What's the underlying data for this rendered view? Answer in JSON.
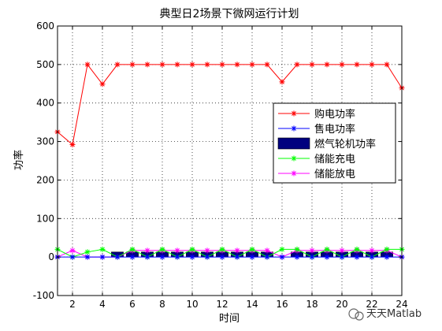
{
  "chart_data": {
    "type": "line",
    "title": "典型日2场景下微网运行计划",
    "xlabel": "时间",
    "ylabel": "功率",
    "xlim": [
      1,
      24
    ],
    "ylim": [
      -100,
      600
    ],
    "xticks": [
      2,
      4,
      6,
      8,
      10,
      12,
      14,
      16,
      18,
      20,
      22,
      24
    ],
    "yticks": [
      -100,
      0,
      100,
      200,
      300,
      400,
      500,
      600
    ],
    "grid": true,
    "legend_position": "right",
    "x": [
      1,
      2,
      3,
      4,
      5,
      6,
      7,
      8,
      9,
      10,
      11,
      12,
      13,
      14,
      15,
      16,
      17,
      18,
      19,
      20,
      21,
      22,
      23,
      24
    ],
    "series": [
      {
        "name": "购电功率",
        "kind": "line",
        "color": "#ff0000",
        "marker": "*",
        "values": [
          325,
          292,
          500,
          449,
          500,
          500,
          500,
          500,
          500,
          500,
          500,
          500,
          500,
          500,
          500,
          455,
          500,
          500,
          500,
          500,
          500,
          500,
          500,
          439
        ]
      },
      {
        "name": "售电功率",
        "kind": "line",
        "color": "#0000ff",
        "marker": "*",
        "values": [
          0,
          0,
          0,
          0,
          0,
          0,
          0,
          0,
          0,
          0,
          0,
          0,
          0,
          0,
          0,
          0,
          0,
          0,
          0,
          0,
          0,
          0,
          0,
          0
        ]
      },
      {
        "name": "燃气轮机功率",
        "kind": "bar",
        "color": "#00007f",
        "values": [
          0,
          0,
          0,
          0,
          13,
          13,
          13,
          13,
          13,
          13,
          13,
          13,
          13,
          13,
          13,
          0,
          13,
          13,
          13,
          13,
          13,
          13,
          13,
          0
        ]
      },
      {
        "name": "储能充电",
        "kind": "line",
        "color": "#00ff00",
        "marker": "*",
        "values": [
          20,
          0,
          13,
          20,
          0,
          20,
          0,
          20,
          0,
          20,
          0,
          20,
          0,
          20,
          0,
          20,
          20,
          0,
          20,
          0,
          20,
          0,
          20,
          20
        ]
      },
      {
        "name": "储能放电",
        "kind": "line",
        "color": "#ff00ff",
        "marker": "*",
        "values": [
          0,
          17,
          0,
          0,
          0,
          17,
          17,
          17,
          17,
          17,
          17,
          17,
          17,
          17,
          17,
          0,
          17,
          17,
          17,
          17,
          17,
          17,
          17,
          0
        ]
      }
    ]
  },
  "watermark": {
    "text": "天天Matlab"
  }
}
